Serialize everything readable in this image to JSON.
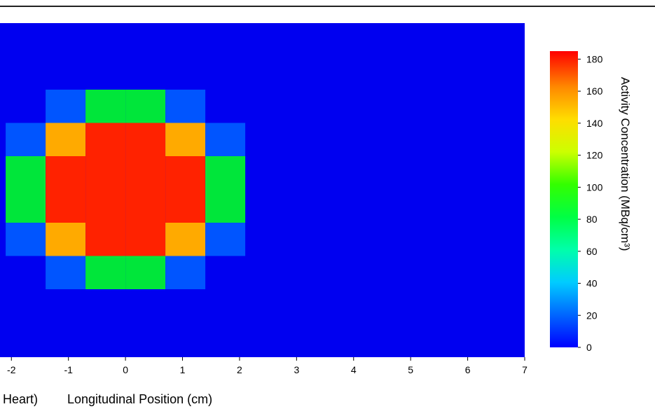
{
  "chart_data": {
    "type": "heatmap",
    "title": "",
    "xlabel": "Longitudinal Position (cm)",
    "xlabel_prefix": "Heart)",
    "colorbar_label": "Activity Concentration (MBq/cm³)",
    "xlim": [
      -2.2,
      7
    ],
    "x_ticks": [
      -2,
      -1,
      0,
      1,
      2,
      3,
      4,
      5,
      6,
      7
    ],
    "colorbar_range": [
      0,
      185
    ],
    "colorbar_ticks": [
      0,
      20,
      40,
      60,
      80,
      100,
      120,
      140,
      160,
      180
    ],
    "grid": false,
    "colorscale": [
      "#0000ff",
      "#00aaff",
      "#00ffff",
      "#00ff66",
      "#33ff00",
      "#ccff00",
      "#ffee00",
      "#ffaa00",
      "#ff5500",
      "#ff0000"
    ],
    "background_value": 0,
    "cell_x_edges": [
      -2.1,
      -1.4,
      -0.7,
      0.0,
      0.7,
      1.4,
      2.1
    ],
    "cell_row_count": 10,
    "cells": [
      {
        "col": 1,
        "row": 2,
        "value": 20
      },
      {
        "col": 2,
        "row": 2,
        "value": 90
      },
      {
        "col": 3,
        "row": 2,
        "value": 90
      },
      {
        "col": 4,
        "row": 2,
        "value": 20
      },
      {
        "col": 0,
        "row": 3,
        "value": 20
      },
      {
        "col": 1,
        "row": 3,
        "value": 150
      },
      {
        "col": 2,
        "row": 3,
        "value": 180
      },
      {
        "col": 3,
        "row": 3,
        "value": 180
      },
      {
        "col": 4,
        "row": 3,
        "value": 150
      },
      {
        "col": 5,
        "row": 3,
        "value": 20
      },
      {
        "col": 0,
        "row": 4,
        "value": 90
      },
      {
        "col": 1,
        "row": 4,
        "value": 180
      },
      {
        "col": 2,
        "row": 4,
        "value": 180
      },
      {
        "col": 3,
        "row": 4,
        "value": 180
      },
      {
        "col": 4,
        "row": 4,
        "value": 180
      },
      {
        "col": 5,
        "row": 4,
        "value": 90
      },
      {
        "col": 0,
        "row": 5,
        "value": 90
      },
      {
        "col": 1,
        "row": 5,
        "value": 180
      },
      {
        "col": 2,
        "row": 5,
        "value": 180
      },
      {
        "col": 3,
        "row": 5,
        "value": 180
      },
      {
        "col": 4,
        "row": 5,
        "value": 180
      },
      {
        "col": 5,
        "row": 5,
        "value": 90
      },
      {
        "col": 0,
        "row": 6,
        "value": 20
      },
      {
        "col": 1,
        "row": 6,
        "value": 150
      },
      {
        "col": 2,
        "row": 6,
        "value": 180
      },
      {
        "col": 3,
        "row": 6,
        "value": 180
      },
      {
        "col": 4,
        "row": 6,
        "value": 150
      },
      {
        "col": 5,
        "row": 6,
        "value": 20
      },
      {
        "col": 1,
        "row": 7,
        "value": 20
      },
      {
        "col": 2,
        "row": 7,
        "value": 90
      },
      {
        "col": 3,
        "row": 7,
        "value": 90
      },
      {
        "col": 4,
        "row": 7,
        "value": 20
      }
    ]
  }
}
